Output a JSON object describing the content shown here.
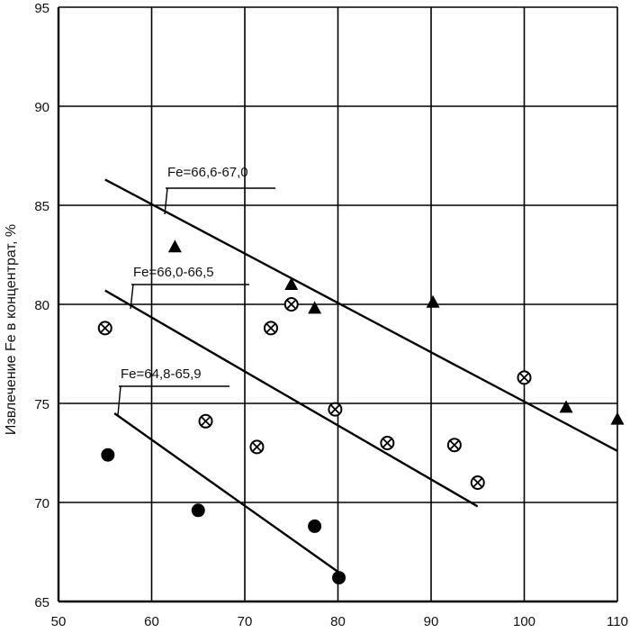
{
  "chart_data": {
    "type": "scatter",
    "title": "",
    "xlabel": "",
    "ylabel": "Извлечение Fe в концентрат, %",
    "xlim": [
      50,
      110
    ],
    "ylim": [
      65,
      95
    ],
    "xticks": [
      50,
      60,
      70,
      80,
      90,
      100,
      110
    ],
    "yticks": [
      65,
      70,
      75,
      80,
      85,
      90,
      95
    ],
    "grid": true,
    "series": [
      {
        "marker": "triangle",
        "points": [
          [
            62.5,
            82.9
          ],
          [
            75,
            81
          ],
          [
            77.5,
            79.8
          ],
          [
            90.2,
            80.1
          ],
          [
            104.5,
            74.8
          ],
          [
            110,
            74.2
          ]
        ]
      },
      {
        "marker": "circle-x",
        "points": [
          [
            55,
            78.8
          ],
          [
            65.8,
            74.1
          ],
          [
            71.3,
            72.8
          ],
          [
            72.8,
            78.8
          ],
          [
            75,
            80
          ],
          [
            79.7,
            74.7
          ],
          [
            85.3,
            73
          ],
          [
            92.5,
            72.9
          ],
          [
            95,
            71
          ],
          [
            100,
            76.3
          ]
        ]
      },
      {
        "marker": "circle-filled",
        "points": [
          [
            55.3,
            72.4
          ],
          [
            65,
            69.6
          ],
          [
            77.5,
            68.8
          ],
          [
            80.1,
            66.2
          ]
        ]
      }
    ],
    "trend_lines": [
      {
        "label": "Fe=66,6-67,0",
        "from": [
          55,
          86.3
        ],
        "to": [
          110,
          72.6
        ]
      },
      {
        "label": "Fe=66,0-66,5",
        "from": [
          55,
          80.7
        ],
        "to": [
          95,
          69.8
        ]
      },
      {
        "label": "Fe=64,8-65,9",
        "from": [
          56,
          74.5
        ],
        "to": [
          80,
          66.5
        ]
      }
    ]
  }
}
